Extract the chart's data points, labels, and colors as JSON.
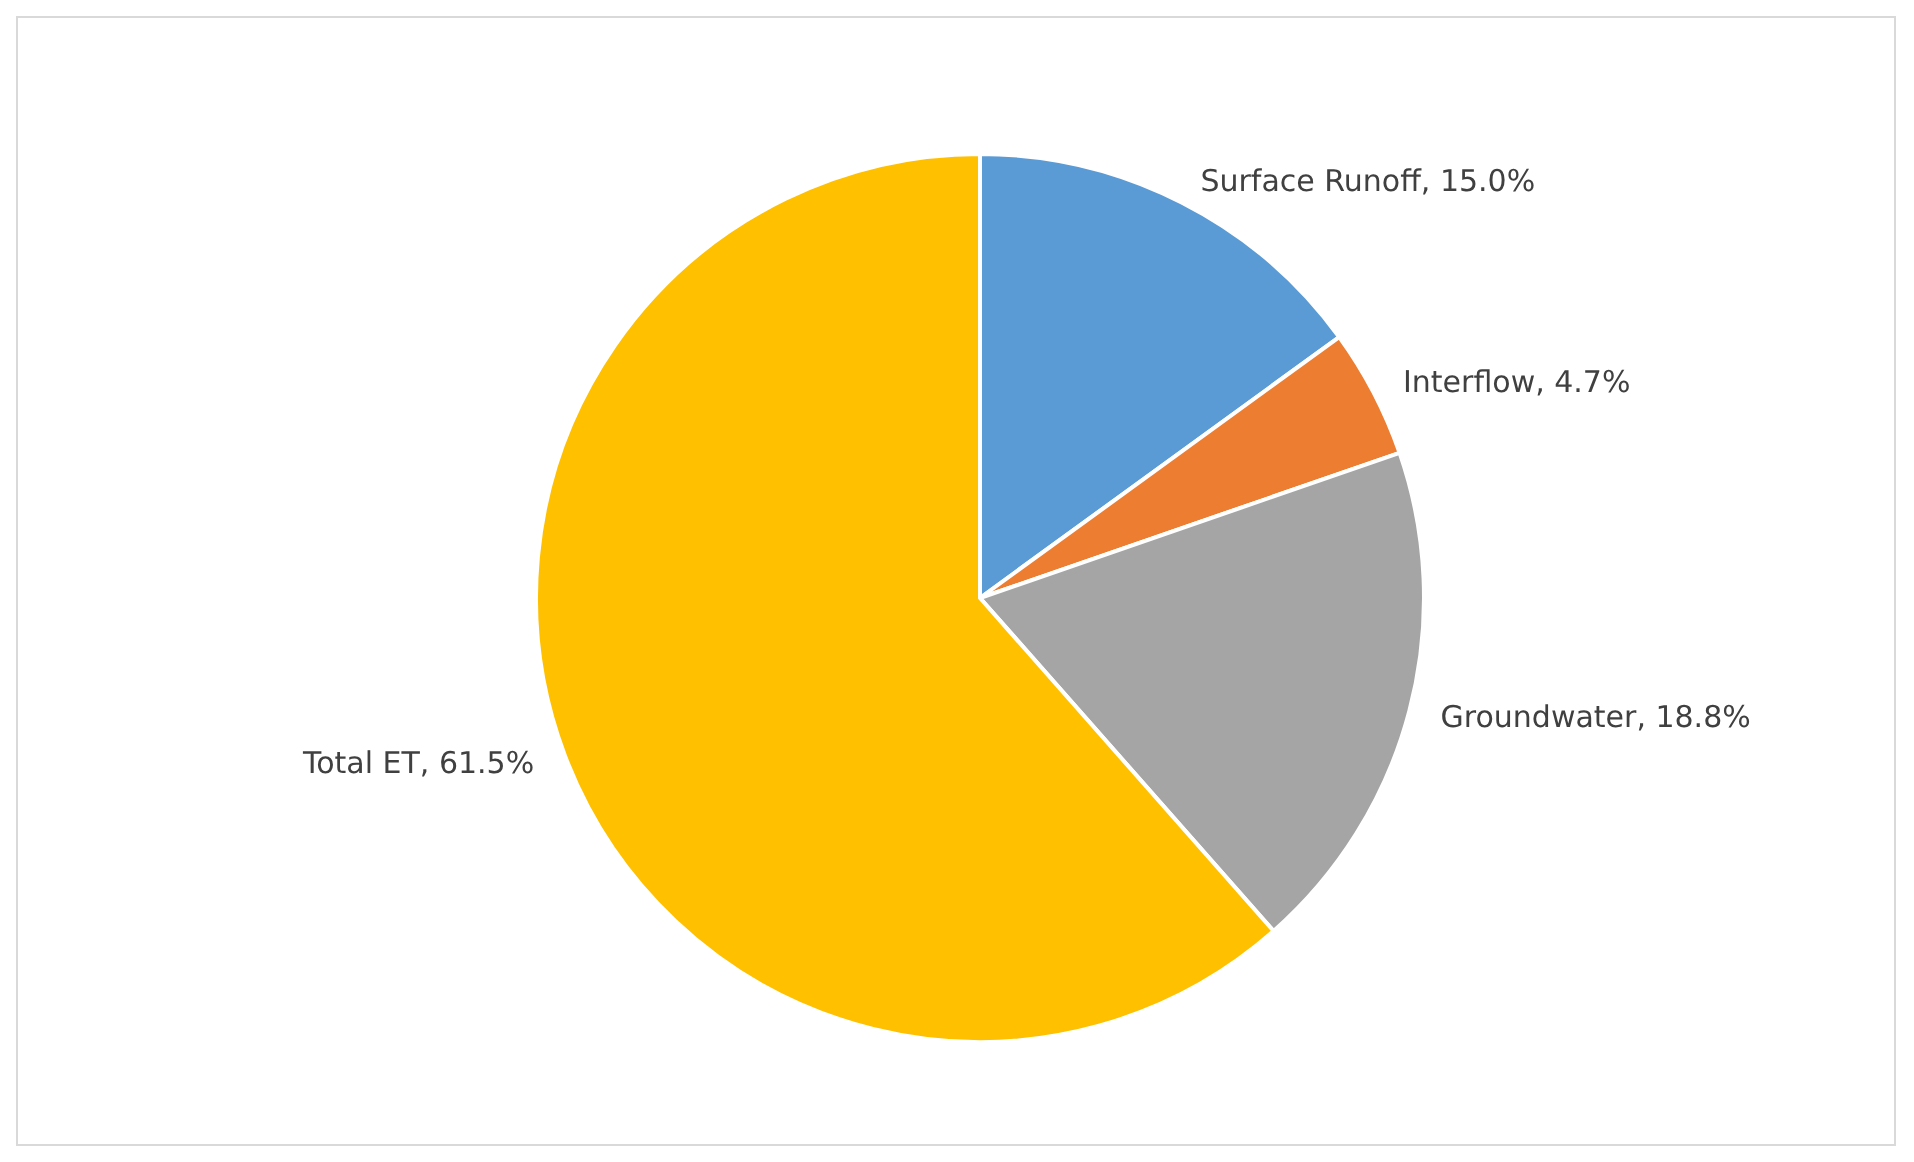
{
  "chart_data": {
    "type": "pie",
    "categories": [
      "Surface Runoff",
      "Interflow",
      "Groundwater",
      "Total ET"
    ],
    "values": [
      15.0,
      4.7,
      18.8,
      61.5
    ],
    "value_labels": [
      "15.0%",
      "4.7%",
      "18.8%",
      "61.5%"
    ],
    "colors": [
      "#5b9bd5",
      "#ed7d31",
      "#a5a5a5",
      "#ffc000"
    ],
    "legend": false
  }
}
